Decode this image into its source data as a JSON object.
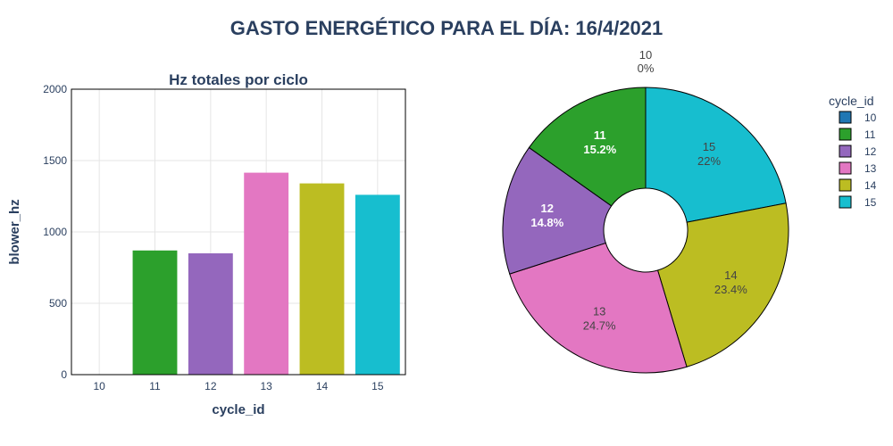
{
  "title": "GASTO ENERGÉTICO PARA EL DÍA: 16/4/2021",
  "colors": {
    "10": "#1f77b4",
    "11": "#2ca02c",
    "12": "#9467bd",
    "13": "#e377c2",
    "14": "#bcbd22",
    "15": "#17becf"
  },
  "legend": {
    "title": "cycle_id",
    "items": [
      "10",
      "11",
      "12",
      "13",
      "14",
      "15"
    ]
  },
  "chart_data": [
    {
      "type": "bar",
      "title": "Hz totales por ciclo",
      "xlabel": "cycle_id",
      "ylabel": "blower_hz",
      "categories": [
        "10",
        "11",
        "12",
        "13",
        "14",
        "15"
      ],
      "values": [
        0,
        870,
        850,
        1415,
        1340,
        1260
      ],
      "ylim": [
        0,
        2000
      ],
      "yticks": [
        0,
        500,
        1000,
        1500,
        2000
      ],
      "grid": true
    },
    {
      "type": "pie",
      "hole": true,
      "categories": [
        "10",
        "11",
        "12",
        "13",
        "14",
        "15"
      ],
      "values": [
        0,
        15.2,
        14.8,
        24.7,
        23.4,
        22
      ],
      "labels": [
        {
          "id": "10",
          "pct": "0%"
        },
        {
          "id": "11",
          "pct": "15.2%"
        },
        {
          "id": "12",
          "pct": "14.8%"
        },
        {
          "id": "13",
          "pct": "24.7%"
        },
        {
          "id": "14",
          "pct": "23.4%"
        },
        {
          "id": "15",
          "pct": "22%"
        }
      ],
      "legend_placement": "right"
    }
  ]
}
